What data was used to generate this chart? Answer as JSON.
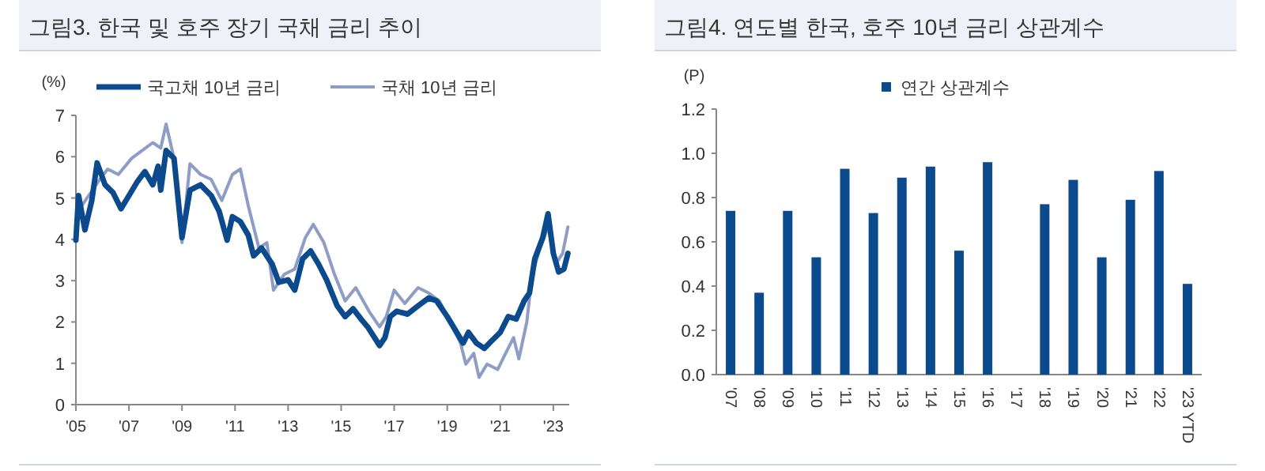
{
  "chart_data": [
    {
      "type": "line",
      "title": "그림3. 한국 및 호주 장기 국채 금리 추이",
      "ylabel": "(%)",
      "legend": "top",
      "grid": false,
      "xlim": [
        2005,
        2023.6
      ],
      "xticks": [
        {
          "value": 2005,
          "label": "'05"
        },
        {
          "value": 2007,
          "label": "'07"
        },
        {
          "value": 2009,
          "label": "'09"
        },
        {
          "value": 2011,
          "label": "'11"
        },
        {
          "value": 2013,
          "label": "'13"
        },
        {
          "value": 2015,
          "label": "'15"
        },
        {
          "value": 2017,
          "label": "'17"
        },
        {
          "value": 2019,
          "label": "'19"
        },
        {
          "value": 2021,
          "label": "'21"
        },
        {
          "value": 2023,
          "label": "'23"
        }
      ],
      "ylim": [
        0,
        7
      ],
      "yticks": [
        0,
        1,
        2,
        3,
        4,
        5,
        6,
        7
      ],
      "series": [
        {
          "name": "국채 10년 금리",
          "color": "#8d9dc6",
          "x": [
            2005.1,
            2005.9,
            2006.2,
            2006.6,
            2007.1,
            2007.5,
            2007.9,
            2008.2,
            2008.4,
            2008.7,
            2009.0,
            2009.3,
            2009.7,
            2010.1,
            2010.5,
            2010.9,
            2011.2,
            2011.5,
            2011.9,
            2012.2,
            2012.45,
            2012.85,
            2013.25,
            2013.65,
            2013.95,
            2014.35,
            2014.75,
            2015.15,
            2015.55,
            2016.05,
            2016.45,
            2016.7,
            2017.0,
            2017.4,
            2017.9,
            2018.3,
            2018.7,
            2019.1,
            2019.5,
            2019.7,
            2020.0,
            2020.2,
            2020.5,
            2020.9,
            2021.2,
            2021.5,
            2021.7,
            2022.0,
            2022.2,
            2022.5,
            2022.8,
            2023.1,
            2023.35,
            2023.55
          ],
          "values": [
            4.7,
            5.45,
            5.7,
            5.57,
            5.96,
            6.15,
            6.34,
            6.21,
            6.79,
            5.96,
            3.92,
            5.83,
            5.57,
            5.45,
            4.94,
            5.57,
            5.7,
            4.81,
            3.79,
            3.92,
            2.77,
            3.15,
            3.28,
            4.04,
            4.36,
            3.92,
            3.15,
            2.51,
            2.83,
            2.26,
            1.88,
            2.13,
            2.77,
            2.45,
            2.83,
            2.7,
            2.51,
            2.0,
            1.49,
            0.98,
            1.24,
            0.66,
            0.98,
            0.85,
            1.24,
            1.62,
            1.11,
            2.0,
            3.15,
            3.79,
            4.3,
            3.41,
            3.66,
            4.3
          ]
        },
        {
          "name": "국고채 10년 금리",
          "color": "#0c4a8e",
          "x": [
            2005.0,
            2005.1,
            2005.34,
            2005.6,
            2005.8,
            2006.1,
            2006.4,
            2006.7,
            2007.0,
            2007.3,
            2007.6,
            2007.9,
            2008.1,
            2008.2,
            2008.4,
            2008.7,
            2008.9,
            2009.0,
            2009.3,
            2009.7,
            2010.1,
            2010.4,
            2010.7,
            2010.9,
            2011.2,
            2011.5,
            2011.7,
            2012.0,
            2012.4,
            2012.65,
            2013.0,
            2013.25,
            2013.55,
            2013.85,
            2014.15,
            2014.45,
            2014.85,
            2015.15,
            2015.45,
            2015.75,
            2016.0,
            2016.45,
            2016.65,
            2016.85,
            2017.1,
            2017.5,
            2017.9,
            2018.3,
            2018.6,
            2019.0,
            2019.3,
            2019.6,
            2019.8,
            2020.1,
            2020.4,
            2020.7,
            2021.0,
            2021.3,
            2021.6,
            2021.9,
            2022.1,
            2022.3,
            2022.6,
            2022.8,
            2023.0,
            2023.2,
            2023.4,
            2023.55
          ],
          "values": [
            3.98,
            5.06,
            4.23,
            4.94,
            5.85,
            5.32,
            5.13,
            4.74,
            5.06,
            5.38,
            5.64,
            5.32,
            5.77,
            5.19,
            6.15,
            5.96,
            4.68,
            4.04,
            5.19,
            5.32,
            5.06,
            4.68,
            3.98,
            4.55,
            4.43,
            4.1,
            3.6,
            3.79,
            3.4,
            2.96,
            3.02,
            2.77,
            3.53,
            3.72,
            3.4,
            3.02,
            2.39,
            2.13,
            2.32,
            2.07,
            1.88,
            1.43,
            1.62,
            2.13,
            2.26,
            2.19,
            2.39,
            2.58,
            2.51,
            2.13,
            1.81,
            1.49,
            1.75,
            1.49,
            1.36,
            1.56,
            1.75,
            2.13,
            2.07,
            2.51,
            2.7,
            3.53,
            4.04,
            4.62,
            3.66,
            3.21,
            3.28,
            3.66
          ]
        }
      ]
    },
    {
      "type": "bar",
      "title": "그림4. 연도별 한국, 호주 10년 금리 상관계수",
      "ylabel": "(P)",
      "legend": "top",
      "grid": false,
      "categories": [
        "'07",
        "'08",
        "'09",
        "'10",
        "'11",
        "'12",
        "'13",
        "'14",
        "'15",
        "'16",
        "'17",
        "'18",
        "'19",
        "'20",
        "'21",
        "'22",
        "'23 YTD"
      ],
      "ylim": [
        0,
        1.2
      ],
      "yticks": [
        {
          "value": 0,
          "label": "0.0"
        },
        0.2,
        0.4,
        0.6,
        0.8,
        {
          "value": 1,
          "label": "1.0"
        },
        1.2
      ],
      "series": [
        {
          "name": "연간 상관계수",
          "color": "#0c4a8e",
          "values": [
            0.74,
            0.37,
            0.74,
            0.53,
            0.93,
            0.73,
            0.89,
            0.94,
            0.56,
            0.96,
            null,
            0.77,
            0.88,
            0.53,
            0.79,
            0.92,
            0.41
          ]
        }
      ]
    }
  ]
}
